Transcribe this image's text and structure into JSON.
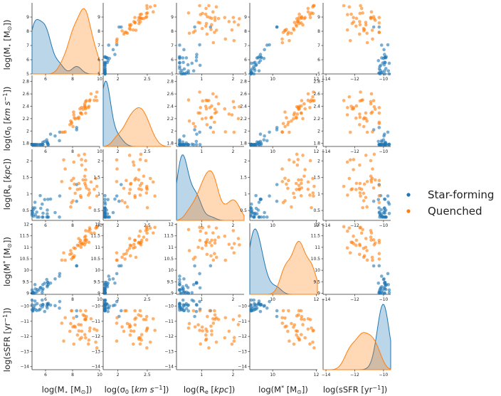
{
  "colors": {
    "Star-forming": "#1f77b4",
    "Quenched": "#ff7f0e"
  },
  "chart_data": {
    "type": "pairplot",
    "variables": [
      {
        "key": "mstar",
        "xlabel": "log(M$_\\star$ [M$_\\odot$])",
        "ylabel": "log(M$_\\star$ [M$_\\odot$])",
        "range": [
          5,
          10
        ],
        "ticks": [
          5,
          6,
          7,
          8,
          9
        ],
        "xticks": [
          6,
          8,
          10
        ]
      },
      {
        "key": "sigma",
        "xlabel": "log(σ$_0$ [km s$^{-1}$])",
        "ylabel": "log(σ$_0$ [km s$^{-1}$])",
        "range": [
          1.75,
          2.9
        ],
        "ticks": [
          1.8,
          2.0,
          2.2,
          2.4,
          2.6,
          2.8
        ],
        "xticks": [
          1.5,
          2.0,
          2.5,
          3.0
        ]
      },
      {
        "key": "re",
        "xlabel": "log(R$_e$ [kpc])",
        "ylabel": "log(R$_e$ [kpc])",
        "range": [
          0.2,
          2.35
        ],
        "ticks": [
          0.5,
          1.0,
          1.5,
          2.0
        ],
        "xticks": [
          0,
          1,
          2,
          3
        ]
      },
      {
        "key": "mstar2",
        "xlabel": "log(M$^*$ [M$_\\odot$])",
        "ylabel": "log(M$^*$ [M$_\\odot$])",
        "range": [
          8.95,
          12.05
        ],
        "ticks": [
          9.0,
          9.5,
          10.0,
          10.5,
          11.0,
          11.5,
          12.0
        ],
        "xticks": [
          8,
          10,
          12
        ]
      },
      {
        "key": "ssfr",
        "xlabel": "log(sSFR [yr$^{-1}$])",
        "ylabel": "log(sSFR [yr$^{-1}$])",
        "range": [
          -14.2,
          -9.5
        ],
        "ticks": [
          -10,
          -11,
          -12,
          -13,
          -14
        ],
        "xticks": [
          -14,
          -12,
          -10
        ]
      }
    ],
    "legend": {
      "position": "right",
      "entries": [
        "Star-forming",
        "Quenched"
      ]
    }
  },
  "labels": {
    "x0": "log(M",
    "x0b": " [M",
    "x1": "log(σ",
    "x1b": " [",
    "x1c": "km s",
    "x2": "log(R",
    "x2b": " [",
    "x2c": "kpc",
    "x3": "log(M",
    "x3b": " [M",
    "x4": "log(sSFR [yr",
    "legend0": "Star-forming",
    "legend1": "Quenched"
  }
}
